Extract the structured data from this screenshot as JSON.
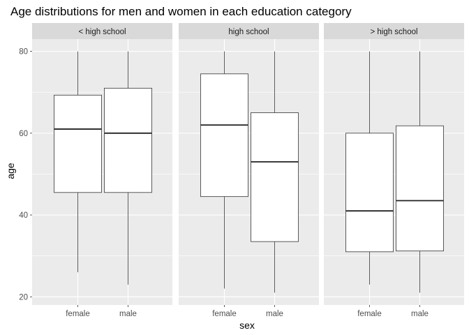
{
  "chart_data": {
    "type": "boxplot",
    "title": "Age distributions for men and women in each education category",
    "xlabel": "sex",
    "ylabel": "age",
    "ylim": [
      18,
      83
    ],
    "yticks": [
      20,
      40,
      60,
      80
    ],
    "grid": true,
    "categories": [
      "female",
      "male"
    ],
    "panels": [
      {
        "label": "< high school",
        "boxes": [
          {
            "category": "female",
            "min": 26,
            "q1": 45.5,
            "median": 61,
            "q3": 69.3,
            "max": 80
          },
          {
            "category": "male",
            "min": 23,
            "q1": 45.5,
            "median": 60,
            "q3": 71,
            "max": 80
          }
        ]
      },
      {
        "label": "high school",
        "boxes": [
          {
            "category": "female",
            "min": 22,
            "q1": 44.5,
            "median": 62,
            "q3": 74.5,
            "max": 80
          },
          {
            "category": "male",
            "min": 21,
            "q1": 33.5,
            "median": 53,
            "q3": 65,
            "max": 80
          }
        ]
      },
      {
        "label": "> high school",
        "boxes": [
          {
            "category": "female",
            "min": 23,
            "q1": 31,
            "median": 41,
            "q3": 60,
            "max": 80
          },
          {
            "category": "male",
            "min": 21,
            "q1": 31.2,
            "median": 43.5,
            "q3": 61.8,
            "max": 80
          }
        ]
      }
    ]
  },
  "colors": {
    "panel_bg": "#ebebeb",
    "strip_bg": "#d9d9d9",
    "grid": "#ffffff",
    "box_fill": "#ffffff",
    "box_stroke": "#333333"
  }
}
